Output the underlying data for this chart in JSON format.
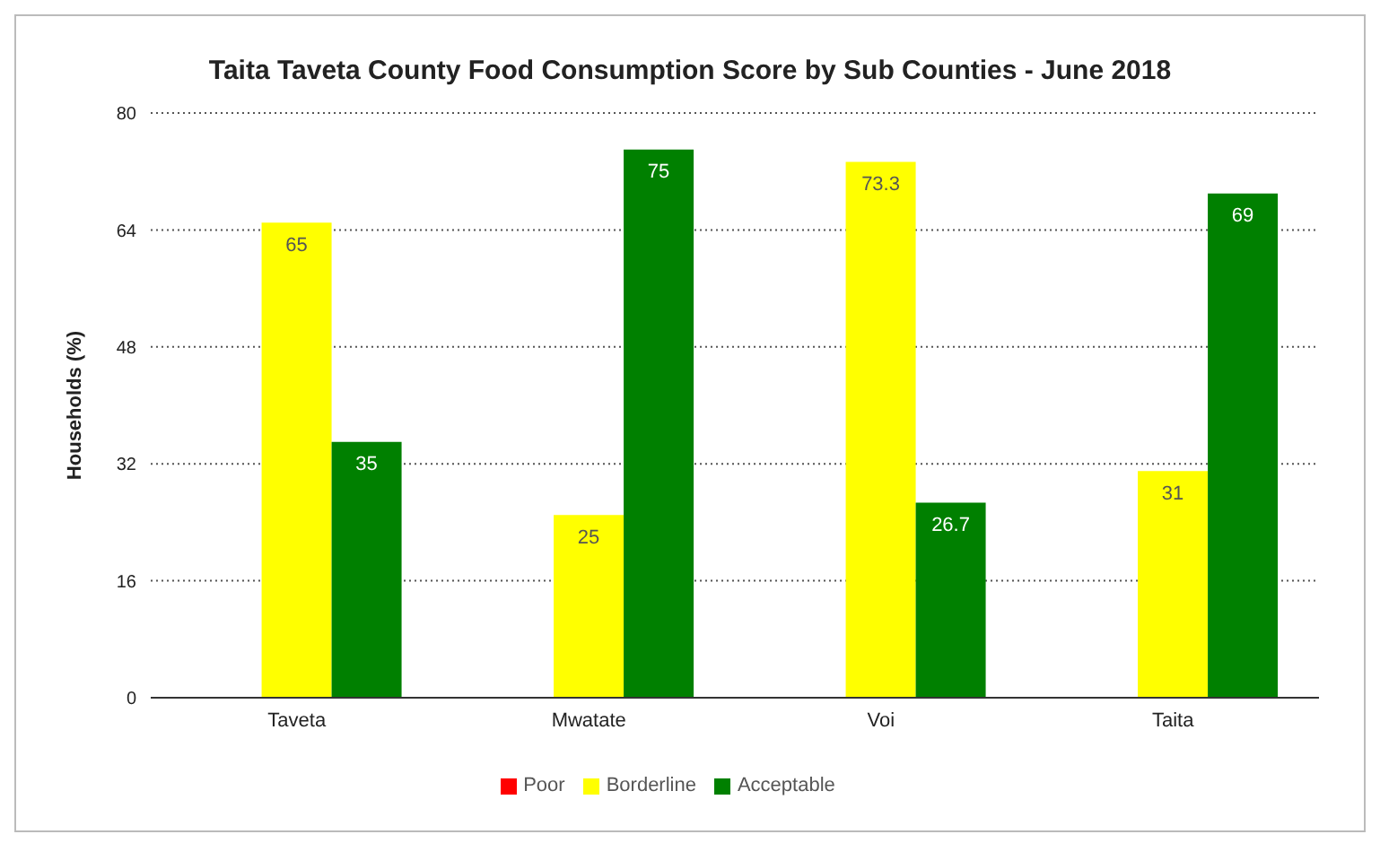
{
  "chart_data": {
    "type": "bar",
    "title": "Taita Taveta County Food Consumption Score by Sub Counties - June 2018",
    "ylabel": "Households (%)",
    "categories": [
      "Taveta",
      "Mwatate",
      "Voi",
      "Taita"
    ],
    "series": [
      {
        "name": "Poor",
        "color": "#ff0000",
        "values": [
          null,
          null,
          null,
          null
        ]
      },
      {
        "name": "Borderline",
        "color": "#ffff00",
        "values": [
          65,
          25,
          73.3,
          31
        ]
      },
      {
        "name": "Acceptable",
        "color": "#008000",
        "values": [
          35,
          75,
          26.7,
          69
        ]
      }
    ],
    "ylim": [
      0,
      80
    ],
    "yticks": [
      0,
      16,
      32,
      48,
      64,
      80
    ],
    "grid": "y",
    "legend": "bottom",
    "data_labels": true
  }
}
